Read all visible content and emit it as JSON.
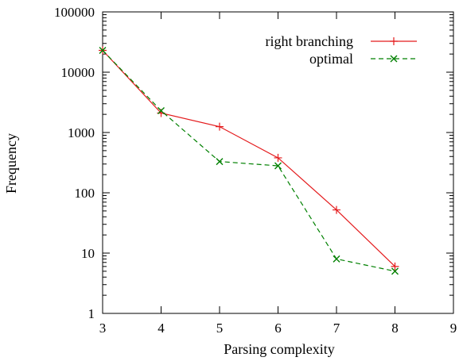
{
  "chart_data": {
    "type": "line",
    "title": "",
    "xlabel": "Parsing complexity",
    "ylabel": "Frequency",
    "xlim": [
      3,
      9
    ],
    "ylim": [
      1,
      100000
    ],
    "yscale": "log",
    "x_ticks": [
      "3",
      "4",
      "5",
      "6",
      "7",
      "8",
      "9"
    ],
    "y_ticks": [
      "1",
      "10",
      "100",
      "1000",
      "10000",
      "100000"
    ],
    "x_tick_values": [
      3,
      4,
      5,
      6,
      7,
      8,
      9
    ],
    "y_tick_values": [
      1,
      10,
      100,
      1000,
      10000,
      100000
    ],
    "grid": false,
    "legend_position": "top-right",
    "series": [
      {
        "name": "right branching",
        "color": "#e41a1c",
        "line_style": "solid",
        "marker": "plus",
        "x": [
          3,
          4,
          5,
          6,
          7,
          8
        ],
        "y": [
          23000,
          2100,
          1250,
          380,
          52,
          6
        ]
      },
      {
        "name": "optimal",
        "color": "#008000",
        "line_style": "dashed",
        "marker": "cross",
        "x": [
          3,
          4,
          5,
          6,
          7,
          8
        ],
        "y": [
          23000,
          2300,
          330,
          280,
          8,
          5
        ]
      }
    ]
  }
}
